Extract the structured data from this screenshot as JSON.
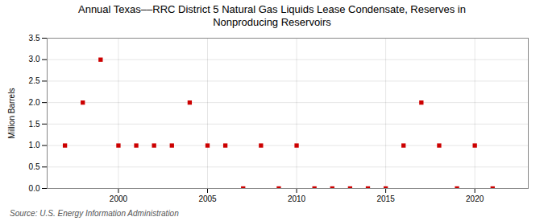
{
  "chart_data": {
    "type": "scatter",
    "title": "Annual Texas––RRC District 5 Natural Gas Liquids Lease Condensate, Reserves in\nNonproducing Reservoirs",
    "ylabel": "Million Barrels",
    "source": "Source: U.S. Energy Information Administration",
    "x": [
      1997,
      1998,
      1999,
      2000,
      2001,
      2002,
      2003,
      2004,
      2005,
      2006,
      2007,
      2008,
      2009,
      2010,
      2011,
      2012,
      2013,
      2014,
      2015,
      2016,
      2017,
      2018,
      2019,
      2020,
      2021
    ],
    "values": [
      1.0,
      2.0,
      3.0,
      1.0,
      1.0,
      1.0,
      1.0,
      2.0,
      1.0,
      1.0,
      0.0,
      1.0,
      0.0,
      1.0,
      0.0,
      0.0,
      0.0,
      0.0,
      0.0,
      1.0,
      2.0,
      1.0,
      0.0,
      1.0,
      0.0
    ],
    "color": "#cc0000",
    "marker": "square",
    "xlim": [
      1996,
      2023
    ],
    "ylim": [
      0.0,
      3.5
    ],
    "xticks": [
      2000,
      2005,
      2010,
      2015,
      2020
    ],
    "yticks": [
      {
        "value": 0,
        "label": "0.0"
      },
      0.5,
      {
        "value": 1,
        "label": "1.0"
      },
      1.5,
      {
        "value": 2,
        "label": "2.0"
      },
      2.5,
      {
        "value": 3,
        "label": "3.0"
      },
      3.5
    ],
    "grid": true
  }
}
